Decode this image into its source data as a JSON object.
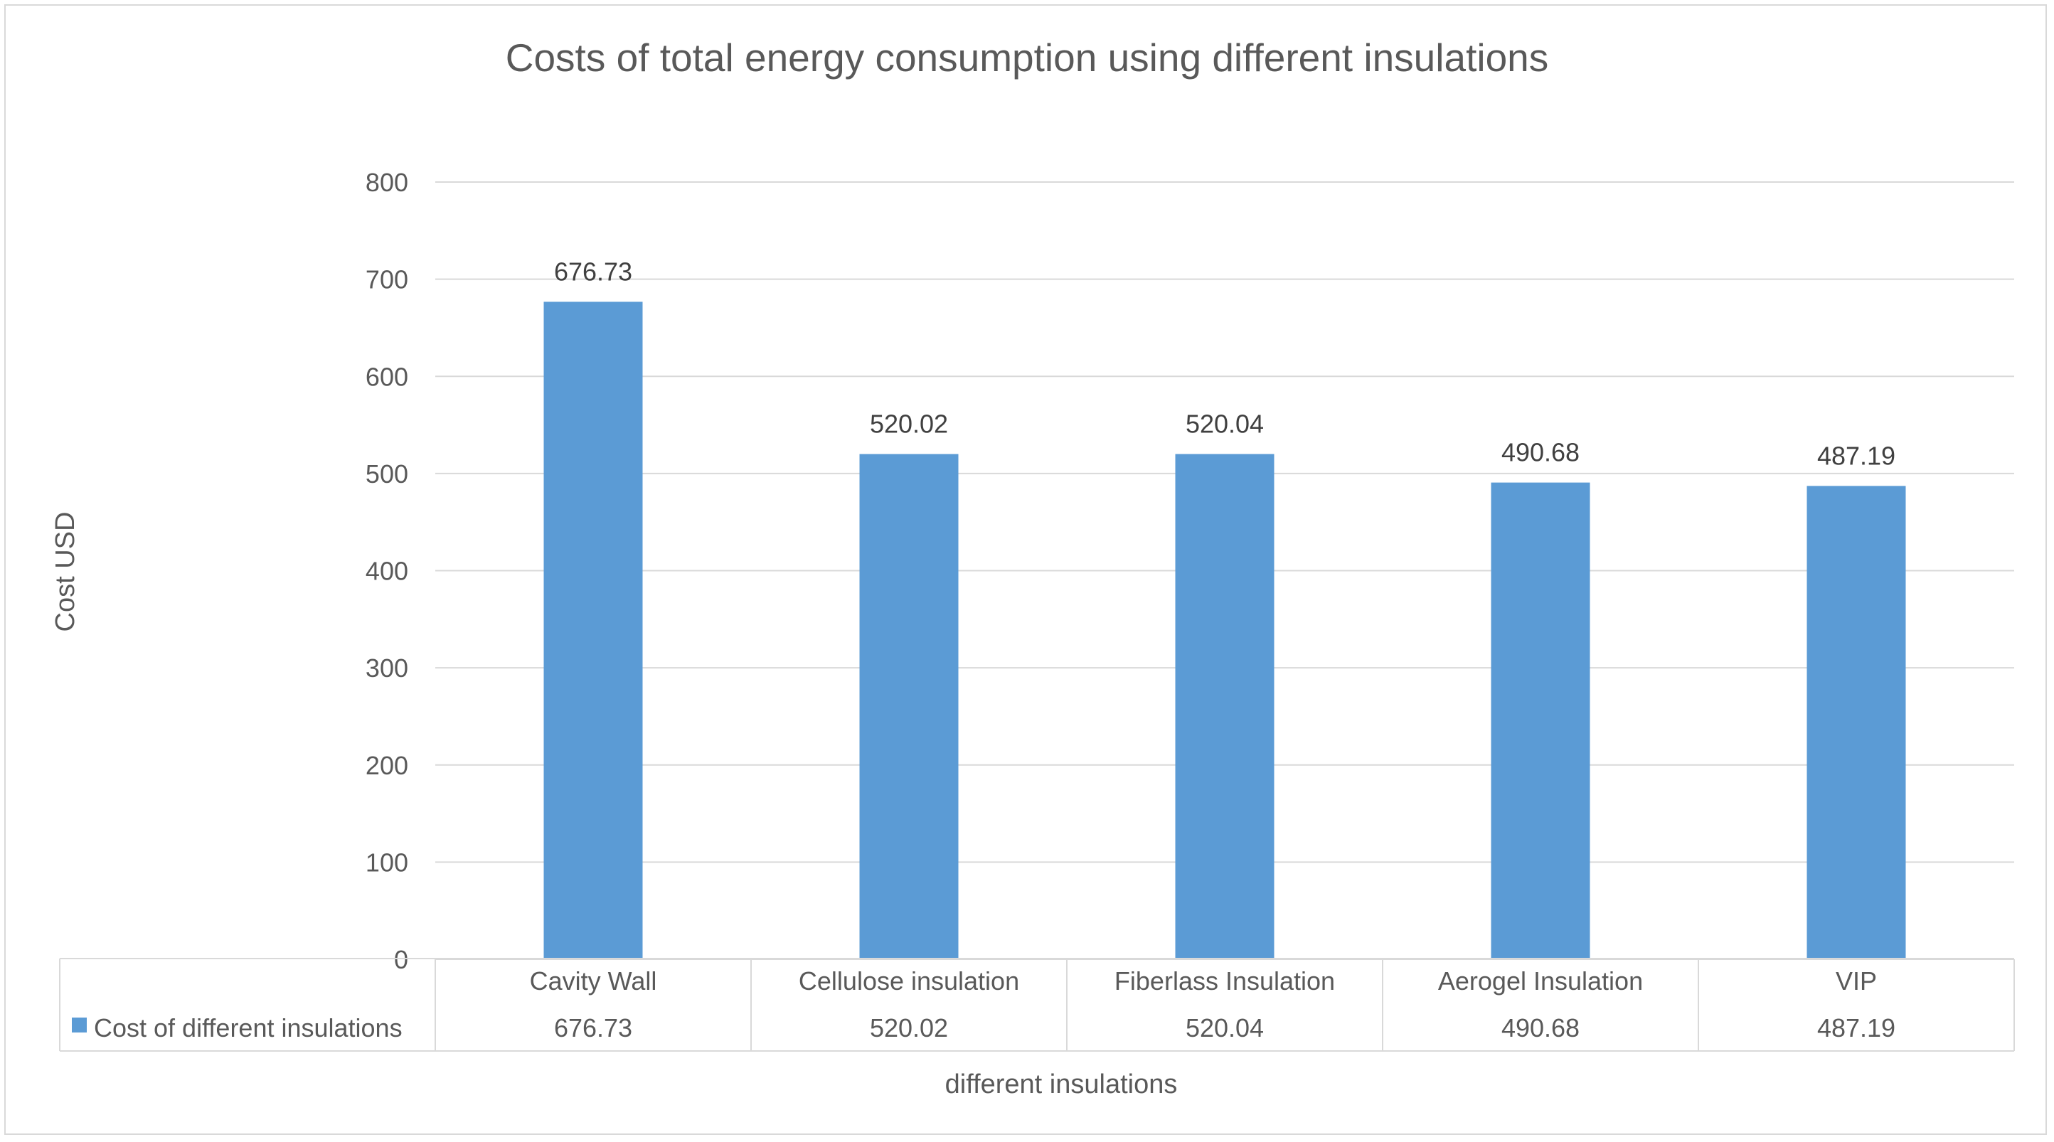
{
  "chart_data": {
    "type": "bar",
    "title": "Costs of total energy consumption using different insulations",
    "xlabel": "different insulations",
    "ylabel": "Cost USD",
    "ylim": [
      0,
      800
    ],
    "yticks": [
      0,
      100,
      200,
      300,
      400,
      500,
      600,
      700,
      800
    ],
    "grid": true,
    "categories": [
      "Cavity Wall",
      "Cellulose insulation",
      "Fiberlass Insulation",
      "Aerogel Insulation",
      "VIP"
    ],
    "series": [
      {
        "name": "Cost of different insulations",
        "values": [
          676.73,
          520.02,
          520.04,
          490.68,
          487.19
        ],
        "labels": [
          "676.73",
          "520.02",
          "520.04",
          "490.68",
          "487.19"
        ],
        "color": "#5b9bd5"
      }
    ],
    "data_table": true
  }
}
